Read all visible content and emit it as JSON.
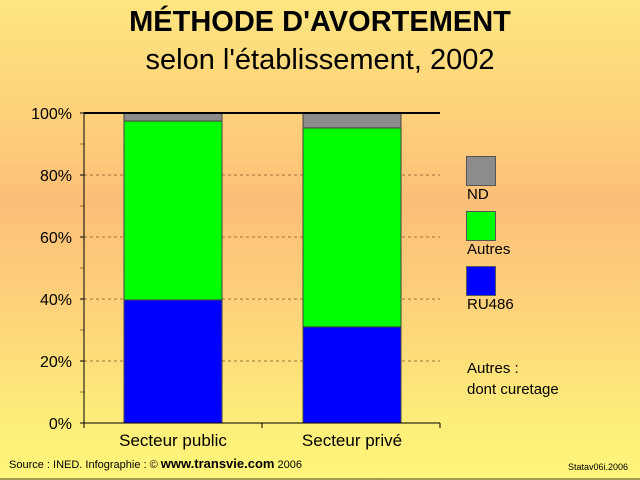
{
  "chart_data": {
    "type": "bar",
    "stacked": true,
    "title": "MÉTHODE D'AVORTEMENT",
    "subtitle": "selon l'établissement, 2002",
    "categories": [
      "Secteur public",
      "Secteur privé"
    ],
    "series": [
      {
        "name": "RU486",
        "values": [
          39.7,
          31
        ],
        "color": "#0000ff"
      },
      {
        "name": "Autres",
        "values": [
          57.7,
          64.2
        ],
        "color": "#00ff00"
      },
      {
        "name": "ND",
        "values": [
          2.6,
          4.8
        ],
        "color": "#8c8c8c"
      }
    ],
    "ylim": [
      0,
      100
    ],
    "yticks": [
      "0%",
      "20%",
      "40%",
      "60%",
      "80%",
      "100%"
    ],
    "ytick_values": [
      0,
      20,
      40,
      60,
      80,
      100
    ],
    "grid": true,
    "legend_placement": "right",
    "legend": [
      "ND",
      "Autres",
      "RU486"
    ],
    "note_lines": [
      "Autres :",
      "dont curetage"
    ]
  },
  "footer": {
    "source_prefix": "Source : INED. Infographie : © ",
    "site": "www.transvie.com",
    "year": " 2006",
    "code": "Statav06i.2006"
  }
}
